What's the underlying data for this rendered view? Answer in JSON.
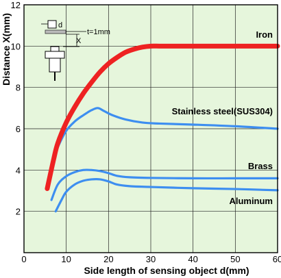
{
  "chart_data": {
    "type": "line",
    "xlabel": "Side length of sensing object d(mm)",
    "ylabel": "Distance X(mm)",
    "xlim": [
      0,
      60
    ],
    "ylim": [
      0,
      12
    ],
    "xticks": [
      0,
      10,
      20,
      30,
      40,
      50,
      60
    ],
    "yticks": [
      2,
      4,
      6,
      8,
      10,
      12
    ],
    "grid": true,
    "legend": "inline labels at right",
    "colors": {
      "background": "#e6f6dc",
      "grid": "#222222",
      "iron": "#ee2222",
      "others": "#3d8ef0"
    },
    "series": [
      {
        "name": "Iron",
        "color": "#ee2222",
        "x": [
          5.5,
          7,
          8,
          10,
          12,
          14,
          16,
          18,
          20,
          22,
          24,
          26,
          28,
          30,
          32,
          34,
          60
        ],
        "y": [
          3.1,
          4.5,
          5.3,
          6.3,
          7.05,
          7.7,
          8.25,
          8.75,
          9.15,
          9.45,
          9.7,
          9.85,
          9.95,
          10.0,
          10.0,
          10.0,
          10.0
        ]
      },
      {
        "name": "Stainless steel(SUS304)",
        "color": "#3d8ef0",
        "x": [
          5.5,
          7,
          8,
          10,
          12,
          14,
          16,
          17.5,
          19,
          21,
          24,
          28,
          32,
          40,
          50,
          60
        ],
        "y": [
          3.1,
          4.5,
          5.1,
          5.9,
          6.35,
          6.65,
          6.9,
          7.0,
          6.85,
          6.65,
          6.45,
          6.3,
          6.25,
          6.2,
          6.12,
          6.0
        ]
      },
      {
        "name": "Brass",
        "color": "#3d8ef0",
        "x": [
          6.5,
          8,
          10,
          12,
          14,
          16,
          18,
          20,
          22,
          25,
          30,
          40,
          50,
          60
        ],
        "y": [
          2.55,
          3.3,
          3.7,
          3.9,
          4.0,
          4.0,
          3.95,
          3.85,
          3.72,
          3.65,
          3.62,
          3.6,
          3.6,
          3.6
        ]
      },
      {
        "name": "Aluminum",
        "color": "#3d8ef0",
        "x": [
          7.5,
          9,
          10,
          12,
          14,
          16,
          18,
          20,
          22,
          25,
          30,
          40,
          50,
          60
        ],
        "y": [
          2.0,
          2.6,
          2.95,
          3.3,
          3.48,
          3.55,
          3.55,
          3.45,
          3.3,
          3.22,
          3.18,
          3.12,
          3.08,
          3.02
        ]
      }
    ],
    "inset": {
      "d_label": "d",
      "t_label": "t=1mm",
      "x_label": "X"
    }
  }
}
